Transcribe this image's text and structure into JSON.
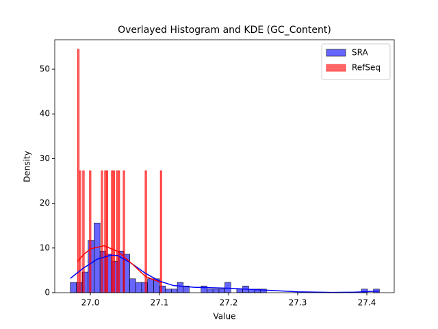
{
  "chart_data": {
    "type": "histogram",
    "title": "Overlayed Histogram and KDE (GC_Content)",
    "x_label": "Value",
    "y_label": "Density",
    "xlim": [
      26.9485,
      27.4396
    ],
    "ylim": [
      0,
      56.6
    ],
    "xticks": [
      {
        "value": 27,
        "label": "27.0"
      },
      27.1,
      27.2,
      27.3,
      27.4
    ],
    "yticks": [
      0,
      10,
      20,
      30,
      40,
      50
    ],
    "legend_position": "upper right",
    "series": [
      {
        "name": "SRA",
        "color": "#0000ff",
        "edge_color": "#000000",
        "bins": [
          26.971,
          26.9796,
          26.9882,
          26.9968,
          27.0054,
          27.014,
          27.0226,
          27.0312,
          27.0398,
          27.0484,
          27.057,
          27.0656,
          27.0742,
          27.0828,
          27.0914,
          27.1,
          27.1086,
          27.1172,
          27.1258,
          27.1344,
          27.143,
          27.1516,
          27.1602,
          27.1688,
          27.1774,
          27.186,
          27.1946,
          27.2032,
          27.2118,
          27.2204,
          27.229,
          27.2376,
          27.2462,
          27.2548,
          27.2634,
          27.272,
          27.2806,
          27.2892,
          27.2978,
          27.3064,
          27.315,
          27.3236,
          27.3322,
          27.3408,
          27.3494,
          27.358,
          27.3666,
          27.3752,
          27.3838,
          27.3924,
          27.401,
          27.4096,
          27.4182
        ],
        "values": [
          2.3,
          2.3,
          4.6,
          11.7,
          15.6,
          9.3,
          8.6,
          7.0,
          9.3,
          8.6,
          3.1,
          2.3,
          2.3,
          3.1,
          3.1,
          1.5,
          0.8,
          0.8,
          2.3,
          1.5,
          0,
          0,
          1.5,
          0.8,
          0.8,
          0.8,
          2.3,
          0,
          0.8,
          1.5,
          0.8,
          0.8,
          0.8,
          0,
          0,
          0,
          0,
          0,
          0,
          0,
          0,
          0,
          0,
          0,
          0,
          0,
          0,
          0,
          0,
          0.8,
          0,
          0.8
        ],
        "kde": {
          "x": [
            26.971,
            26.99,
            27.01,
            27.03,
            27.04,
            27.06,
            27.08,
            27.1,
            27.12,
            27.15,
            27.2,
            27.25,
            27.3,
            27.35,
            27.38,
            27.41,
            27.418
          ],
          "values": [
            3.2,
            5.5,
            7.5,
            8.4,
            8.3,
            6.5,
            4.3,
            2.6,
            1.6,
            1.2,
            1.0,
            0.6,
            0.2,
            0.05,
            0.1,
            0.3,
            0.35
          ]
        }
      },
      {
        "name": "RefSeq",
        "color": "#ff0000",
        "edge_color": "#ff0000",
        "bins": [
          26.9815,
          26.98394,
          26.98638,
          26.98882,
          26.99126,
          26.9937,
          26.99614,
          26.99858,
          27.00102,
          27.00346,
          27.0059,
          27.00834,
          27.01078,
          27.01322,
          27.01566,
          27.0181,
          27.02054,
          27.02298,
          27.02542,
          27.02786,
          27.0303,
          27.03274,
          27.03518,
          27.03762,
          27.04006,
          27.0425,
          27.04494,
          27.04738,
          27.04982,
          27.05226,
          27.0547,
          27.05714,
          27.05958,
          27.06202,
          27.06446,
          27.0669,
          27.06934,
          27.07178,
          27.07422,
          27.07666,
          27.0791,
          27.08154,
          27.08398,
          27.08642,
          27.08886,
          27.0913,
          27.09374,
          27.09618,
          27.09862,
          27.10106,
          27.1035
        ],
        "values": [
          54.5,
          27.3,
          0,
          27.3,
          0,
          0,
          0,
          27.3,
          0,
          0,
          0,
          0,
          0,
          0,
          27.3,
          0,
          27.3,
          27.3,
          0,
          0,
          27.3,
          27.3,
          0,
          27.3,
          27.3,
          0,
          0,
          27.3,
          0,
          0,
          0,
          0,
          0,
          0,
          0,
          0,
          0,
          0,
          0,
          0,
          27.3,
          0,
          0,
          0,
          0,
          0,
          0,
          0,
          0,
          27.3
        ],
        "kde": {
          "x": [
            26.9815,
            26.99,
            27.0,
            27.02,
            27.04,
            27.06,
            27.08,
            27.1,
            27.1035
          ],
          "values": [
            7.0,
            8.5,
            9.8,
            10.5,
            9.2,
            6.5,
            3.6,
            2.4,
            2.3
          ]
        }
      }
    ]
  }
}
